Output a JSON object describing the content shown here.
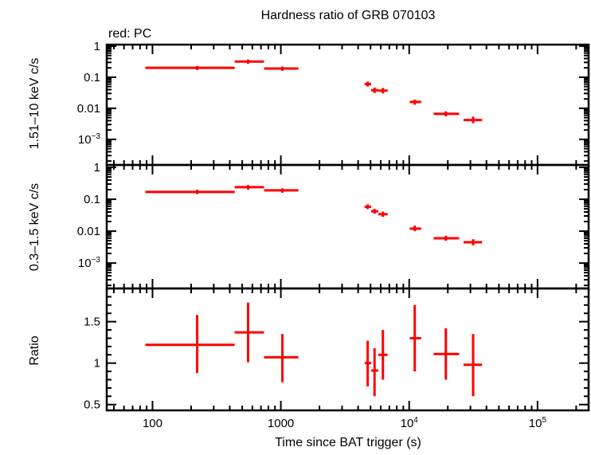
{
  "chart_data": {
    "type": "scatter",
    "title": "Hardness ratio of GRB 070103",
    "subtitle": "red: PC",
    "xlabel": "Time since BAT trigger (s)",
    "xscale": "log",
    "xlim": [
      44,
      250000
    ],
    "xticks": [
      {
        "v": 100,
        "label": "100"
      },
      {
        "v": 1000,
        "label": "1000"
      },
      {
        "v": 10000,
        "label": "10",
        "sup": "4"
      },
      {
        "v": 100000,
        "label": "10",
        "sup": "5"
      }
    ],
    "grid": false,
    "series_color": "#ff0000",
    "panels": [
      {
        "ylabel": "1.51–10 keV c/s",
        "yscale": "log",
        "ylim": [
          0.00015,
          1.12
        ],
        "yticks": [
          {
            "v": 1,
            "label": "1"
          },
          {
            "v": 0.1,
            "label": "0.1"
          },
          {
            "v": 0.01,
            "label": "0.01"
          },
          {
            "v": 0.001,
            "label": "10",
            "sup": "−3"
          }
        ],
        "points": [
          {
            "x": 223,
            "xlo": 88,
            "xhi": 437,
            "y": 0.2,
            "ylo": 0.17,
            "yhi": 0.23
          },
          {
            "x": 556,
            "xlo": 437,
            "xhi": 740,
            "y": 0.32,
            "ylo": 0.27,
            "yhi": 0.37
          },
          {
            "x": 1028,
            "xlo": 740,
            "xhi": 1370,
            "y": 0.19,
            "ylo": 0.16,
            "yhi": 0.22
          },
          {
            "x": 4750,
            "xlo": 4500,
            "xhi": 5050,
            "y": 0.06,
            "ylo": 0.05,
            "yhi": 0.072
          },
          {
            "x": 5370,
            "xlo": 5050,
            "xhi": 5750,
            "y": 0.038,
            "ylo": 0.031,
            "yhi": 0.046
          },
          {
            "x": 6240,
            "xlo": 5750,
            "xhi": 6800,
            "y": 0.037,
            "ylo": 0.03,
            "yhi": 0.045
          },
          {
            "x": 11050,
            "xlo": 10100,
            "xhi": 12400,
            "y": 0.016,
            "ylo": 0.013,
            "yhi": 0.019
          },
          {
            "x": 19300,
            "xlo": 15500,
            "xhi": 24500,
            "y": 0.0066,
            "ylo": 0.0055,
            "yhi": 0.008
          },
          {
            "x": 31500,
            "xlo": 26500,
            "xhi": 37000,
            "y": 0.0042,
            "ylo": 0.0033,
            "yhi": 0.0054
          }
        ]
      },
      {
        "ylabel": "0.3–1.5 keV c/s",
        "yscale": "log",
        "ylim": [
          0.00016,
          1.19
        ],
        "yticks": [
          {
            "v": 1,
            "label": "1"
          },
          {
            "v": 0.1,
            "label": "0.1"
          },
          {
            "v": 0.01,
            "label": "0.01"
          },
          {
            "v": 0.001,
            "label": "10",
            "sup": "−3"
          }
        ],
        "points": [
          {
            "x": 223,
            "xlo": 88,
            "xhi": 437,
            "y": 0.17,
            "ylo": 0.145,
            "yhi": 0.2
          },
          {
            "x": 556,
            "xlo": 437,
            "xhi": 740,
            "y": 0.24,
            "ylo": 0.2,
            "yhi": 0.28
          },
          {
            "x": 1028,
            "xlo": 740,
            "xhi": 1370,
            "y": 0.19,
            "ylo": 0.16,
            "yhi": 0.22
          },
          {
            "x": 4750,
            "xlo": 4500,
            "xhi": 5050,
            "y": 0.058,
            "ylo": 0.049,
            "yhi": 0.069
          },
          {
            "x": 5370,
            "xlo": 5050,
            "xhi": 5750,
            "y": 0.042,
            "ylo": 0.035,
            "yhi": 0.05
          },
          {
            "x": 6240,
            "xlo": 5750,
            "xhi": 6800,
            "y": 0.034,
            "ylo": 0.028,
            "yhi": 0.041
          },
          {
            "x": 11050,
            "xlo": 10100,
            "xhi": 12400,
            "y": 0.012,
            "ylo": 0.01,
            "yhi": 0.015
          },
          {
            "x": 19300,
            "xlo": 15500,
            "xhi": 24500,
            "y": 0.006,
            "ylo": 0.005,
            "yhi": 0.0072
          },
          {
            "x": 31500,
            "xlo": 26500,
            "xhi": 37000,
            "y": 0.0045,
            "ylo": 0.0036,
            "yhi": 0.0056
          }
        ]
      },
      {
        "ylabel": "Ratio",
        "yscale": "linear",
        "ylim": [
          0.43,
          1.9
        ],
        "yticks": [
          {
            "v": 0.5,
            "label": "0.5"
          },
          {
            "v": 1,
            "label": "1"
          },
          {
            "v": 1.5,
            "label": "1.5"
          }
        ],
        "points": [
          {
            "x": 223,
            "xlo": 88,
            "xhi": 437,
            "y": 1.22,
            "ylo": 0.88,
            "yhi": 1.58
          },
          {
            "x": 556,
            "xlo": 437,
            "xhi": 740,
            "y": 1.37,
            "ylo": 1.01,
            "yhi": 1.73
          },
          {
            "x": 1028,
            "xlo": 740,
            "xhi": 1370,
            "y": 1.07,
            "ylo": 0.77,
            "yhi": 1.35
          },
          {
            "x": 4750,
            "xlo": 4500,
            "xhi": 5050,
            "y": 1.0,
            "ylo": 0.72,
            "yhi": 1.27
          },
          {
            "x": 5370,
            "xlo": 5050,
            "xhi": 5750,
            "y": 0.91,
            "ylo": 0.6,
            "yhi": 1.18
          },
          {
            "x": 6240,
            "xlo": 5750,
            "xhi": 6800,
            "y": 1.1,
            "ylo": 0.8,
            "yhi": 1.4
          },
          {
            "x": 11050,
            "xlo": 10100,
            "xhi": 12400,
            "y": 1.3,
            "ylo": 0.9,
            "yhi": 1.7
          },
          {
            "x": 19300,
            "xlo": 15500,
            "xhi": 24500,
            "y": 1.11,
            "ylo": 0.8,
            "yhi": 1.42
          },
          {
            "x": 31500,
            "xlo": 26500,
            "xhi": 37000,
            "y": 0.98,
            "ylo": 0.6,
            "yhi": 1.35
          }
        ]
      }
    ]
  }
}
